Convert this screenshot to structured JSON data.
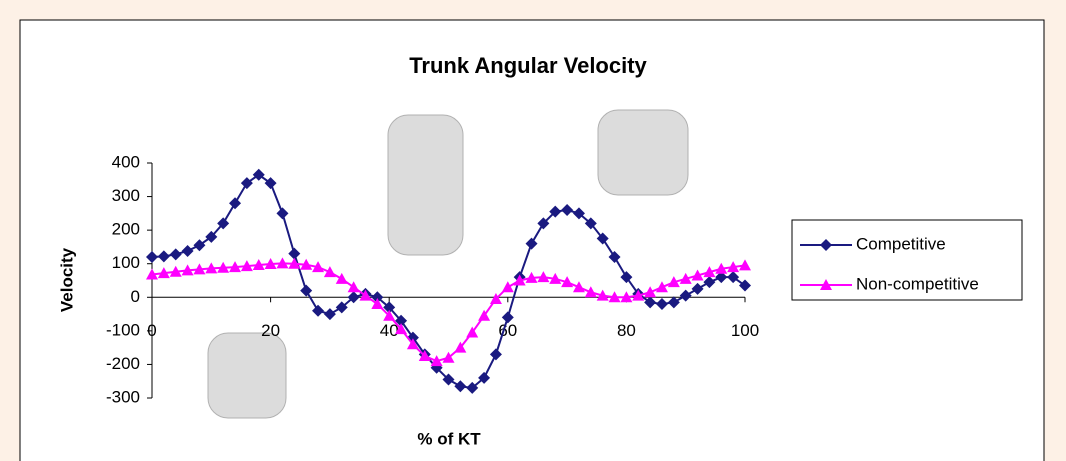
{
  "chart_data": {
    "type": "line",
    "title": "Trunk Angular Velocity",
    "x_label": "% of KT",
    "y_label": "Velocity",
    "x": [
      0,
      2,
      4,
      6,
      8,
      10,
      12,
      14,
      16,
      18,
      20,
      22,
      24,
      26,
      28,
      30,
      32,
      34,
      36,
      38,
      40,
      42,
      44,
      46,
      48,
      50,
      52,
      54,
      56,
      58,
      60,
      62,
      64,
      66,
      68,
      70,
      72,
      74,
      76,
      78,
      80,
      82,
      84,
      86,
      88,
      90,
      92,
      94,
      96,
      98,
      100
    ],
    "series": [
      {
        "name": "Competitive",
        "color": "#1a1a80",
        "marker": "diamond",
        "values": [
          120,
          122,
          128,
          138,
          155,
          180,
          220,
          280,
          340,
          365,
          340,
          250,
          130,
          20,
          -40,
          -50,
          -30,
          0,
          10,
          0,
          -30,
          -70,
          -120,
          -170,
          -210,
          -245,
          -265,
          -270,
          -240,
          -170,
          -60,
          60,
          160,
          220,
          255,
          260,
          250,
          220,
          175,
          120,
          60,
          10,
          -15,
          -20,
          -15,
          5,
          25,
          45,
          60,
          60,
          35
        ]
      },
      {
        "name": "Non-competitive",
        "color": "#ff00ff",
        "marker": "triangle",
        "values": [
          68,
          72,
          76,
          80,
          83,
          86,
          88,
          90,
          93,
          96,
          99,
          101,
          100,
          97,
          90,
          75,
          55,
          30,
          5,
          -20,
          -55,
          -95,
          -140,
          -175,
          -190,
          -180,
          -150,
          -105,
          -55,
          -5,
          30,
          50,
          58,
          60,
          55,
          45,
          30,
          15,
          5,
          0,
          0,
          5,
          15,
          30,
          45,
          55,
          65,
          75,
          85,
          90,
          95
        ]
      }
    ],
    "xlim": [
      0,
      100
    ],
    "xticks": [
      0,
      20,
      40,
      60,
      80,
      100
    ],
    "ylim": [
      -300,
      400
    ],
    "yticks": [
      -300,
      -200,
      -100,
      0,
      100,
      200,
      300,
      400
    ],
    "grid": false,
    "legend": "right"
  }
}
